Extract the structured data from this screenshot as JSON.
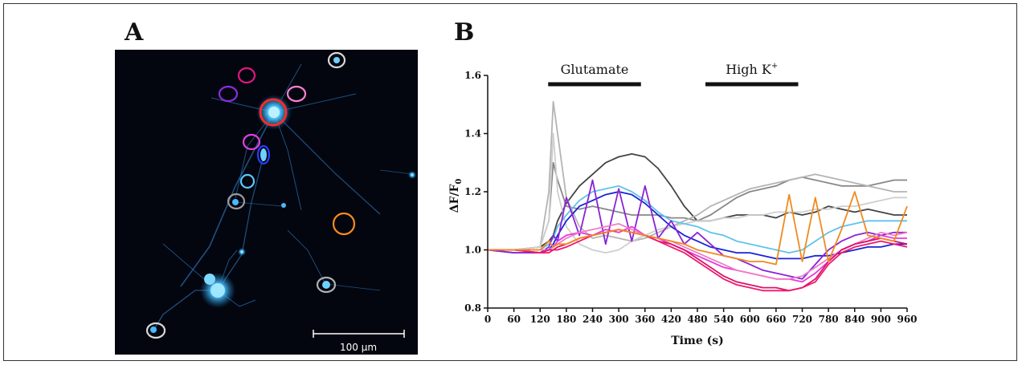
{
  "panels": {
    "a_label": "A",
    "b_label": "B"
  },
  "micrograph": {
    "scale_bar_label": "100 µm",
    "background_color": "#03060f",
    "cell_color": "#3ab8ff",
    "roi_circles": [
      {
        "color": "#d8d8d8"
      },
      {
        "color": "#e0187a"
      },
      {
        "color": "#8a2be2"
      },
      {
        "color": "#ff7fd0"
      },
      {
        "color": "#ff2a2a"
      },
      {
        "color": "#e040e0"
      },
      {
        "color": "#2a3cff"
      },
      {
        "color": "#5cc8ff"
      },
      {
        "color": "#9a9a9a"
      },
      {
        "color": "#ff8a1a"
      },
      {
        "color": "#b0b0b0"
      },
      {
        "color": "#d8d8d8"
      }
    ]
  },
  "chart_data": {
    "type": "line",
    "xlabel": "Time (s)",
    "ylabel": "ΔF/F",
    "ylabel_sub": "0",
    "xlim": [
      0,
      960
    ],
    "ylim": [
      0.8,
      1.6
    ],
    "x_ticks": [
      0,
      60,
      120,
      180,
      240,
      300,
      360,
      420,
      480,
      540,
      600,
      660,
      720,
      780,
      840,
      900,
      960
    ],
    "y_ticks": [
      "0.8",
      "1.0",
      "1.2",
      "1.4",
      "1.6"
    ],
    "grid": false,
    "stimuli": [
      {
        "label": "Glutamate",
        "superscript": "",
        "start": 120,
        "end": 360
      },
      {
        "label": "High K",
        "superscript": "+",
        "start": 480,
        "end": 720
      }
    ],
    "x": [
      0,
      60,
      120,
      140,
      150,
      160,
      180,
      210,
      240,
      270,
      300,
      330,
      360,
      390,
      420,
      450,
      480,
      510,
      540,
      570,
      600,
      630,
      660,
      690,
      720,
      750,
      780,
      810,
      840,
      870,
      900,
      930,
      960
    ],
    "series": [
      {
        "color": "#444444",
        "values": [
          1.0,
          1.0,
          1.01,
          1.03,
          1.05,
          1.1,
          1.16,
          1.22,
          1.26,
          1.3,
          1.32,
          1.33,
          1.32,
          1.28,
          1.22,
          1.15,
          1.1,
          1.1,
          1.11,
          1.12,
          1.12,
          1.12,
          1.11,
          1.13,
          1.12,
          1.13,
          1.15,
          1.14,
          1.13,
          1.14,
          1.13,
          1.12,
          1.12
        ]
      },
      {
        "color": "#888888",
        "values": [
          1.0,
          1.0,
          1.01,
          1.1,
          1.3,
          1.24,
          1.15,
          1.14,
          1.15,
          1.14,
          1.13,
          1.12,
          1.12,
          1.12,
          1.11,
          1.11,
          1.1,
          1.12,
          1.15,
          1.18,
          1.2,
          1.21,
          1.22,
          1.24,
          1.25,
          1.24,
          1.23,
          1.22,
          1.22,
          1.22,
          1.23,
          1.24,
          1.24
        ]
      },
      {
        "color": "#b4b4b4",
        "values": [
          1.0,
          1.0,
          1.01,
          1.2,
          1.51,
          1.4,
          1.18,
          1.08,
          1.04,
          1.05,
          1.04,
          1.03,
          1.04,
          1.06,
          1.08,
          1.1,
          1.12,
          1.15,
          1.17,
          1.19,
          1.21,
          1.22,
          1.23,
          1.24,
          1.25,
          1.26,
          1.25,
          1.24,
          1.23,
          1.22,
          1.21,
          1.2,
          1.2
        ]
      },
      {
        "color": "#cfcfcf",
        "values": [
          1.0,
          1.0,
          1.01,
          1.1,
          1.4,
          1.2,
          1.08,
          1.02,
          1.0,
          0.99,
          1.0,
          1.03,
          1.05,
          1.07,
          1.08,
          1.09,
          1.1,
          1.1,
          1.11,
          1.11,
          1.12,
          1.12,
          1.13,
          1.13,
          1.13,
          1.14,
          1.14,
          1.15,
          1.15,
          1.16,
          1.17,
          1.18,
          1.18
        ]
      },
      {
        "color": "#5fc3ec",
        "values": [
          1.0,
          1.0,
          1.0,
          1.02,
          1.04,
          1.08,
          1.12,
          1.17,
          1.2,
          1.21,
          1.22,
          1.2,
          1.17,
          1.13,
          1.1,
          1.09,
          1.08,
          1.06,
          1.05,
          1.03,
          1.02,
          1.01,
          1.0,
          0.99,
          1.0,
          1.03,
          1.06,
          1.08,
          1.09,
          1.1,
          1.1,
          1.1,
          1.1
        ]
      },
      {
        "color": "#1a22d8",
        "values": [
          1.0,
          0.99,
          0.99,
          1.0,
          1.02,
          1.05,
          1.1,
          1.15,
          1.17,
          1.19,
          1.2,
          1.19,
          1.16,
          1.12,
          1.08,
          1.05,
          1.03,
          1.01,
          1.0,
          0.99,
          0.99,
          0.98,
          0.97,
          0.97,
          0.97,
          0.98,
          0.98,
          0.99,
          1.0,
          1.01,
          1.01,
          1.02,
          1.02
        ]
      },
      {
        "color": "#8a23d6",
        "values": [
          1.0,
          0.99,
          0.99,
          1.01,
          1.05,
          1.03,
          1.18,
          1.05,
          1.24,
          1.02,
          1.21,
          1.03,
          1.22,
          1.04,
          1.1,
          1.02,
          1.06,
          1.02,
          0.98,
          0.97,
          0.95,
          0.93,
          0.92,
          0.91,
          0.9,
          0.95,
          1.0,
          1.03,
          1.05,
          1.06,
          1.05,
          1.06,
          1.06
        ]
      },
      {
        "color": "#e63ad8",
        "values": [
          1.0,
          1.0,
          0.99,
          1.0,
          1.01,
          1.03,
          1.05,
          1.06,
          1.05,
          1.07,
          1.06,
          1.08,
          1.05,
          1.04,
          1.02,
          1.0,
          0.98,
          0.96,
          0.94,
          0.93,
          0.92,
          0.91,
          0.9,
          0.9,
          0.89,
          0.92,
          0.96,
          1.0,
          1.02,
          1.03,
          1.05,
          1.04,
          1.04
        ]
      },
      {
        "color": "#f07ec8",
        "values": [
          1.0,
          1.0,
          1.0,
          1.0,
          1.01,
          1.02,
          1.04,
          1.06,
          1.07,
          1.08,
          1.09,
          1.07,
          1.05,
          1.04,
          1.03,
          1.01,
          0.99,
          0.97,
          0.95,
          0.93,
          0.92,
          0.91,
          0.9,
          0.9,
          0.91,
          0.94,
          0.97,
          1.0,
          1.02,
          1.04,
          1.06,
          1.05,
          1.06
        ]
      },
      {
        "color": "#d81466",
        "values": [
          1.0,
          1.0,
          0.99,
          1.0,
          1.0,
          1.01,
          1.02,
          1.04,
          1.05,
          1.06,
          1.07,
          1.06,
          1.05,
          1.03,
          1.02,
          1.0,
          0.97,
          0.94,
          0.91,
          0.89,
          0.88,
          0.87,
          0.87,
          0.86,
          0.87,
          0.9,
          0.96,
          1.0,
          1.02,
          1.03,
          1.04,
          1.03,
          1.02
        ]
      },
      {
        "color": "#f2186e",
        "values": [
          1.0,
          1.0,
          0.99,
          0.99,
          1.0,
          1.0,
          1.01,
          1.03,
          1.05,
          1.06,
          1.07,
          1.06,
          1.05,
          1.03,
          1.01,
          0.99,
          0.96,
          0.93,
          0.9,
          0.88,
          0.87,
          0.86,
          0.86,
          0.86,
          0.87,
          0.89,
          0.95,
          0.99,
          1.01,
          1.02,
          1.03,
          1.02,
          1.01
        ]
      },
      {
        "color": "#f08a1e",
        "values": [
          1.0,
          1.0,
          1.0,
          1.03,
          1.01,
          1.02,
          1.02,
          1.04,
          1.05,
          1.06,
          1.07,
          1.06,
          1.05,
          1.04,
          1.03,
          1.02,
          1.0,
          0.99,
          0.98,
          0.97,
          0.96,
          0.96,
          0.95,
          1.19,
          0.96,
          1.18,
          0.96,
          1.07,
          1.2,
          1.05,
          1.04,
          1.03,
          1.15
        ]
      }
    ]
  }
}
